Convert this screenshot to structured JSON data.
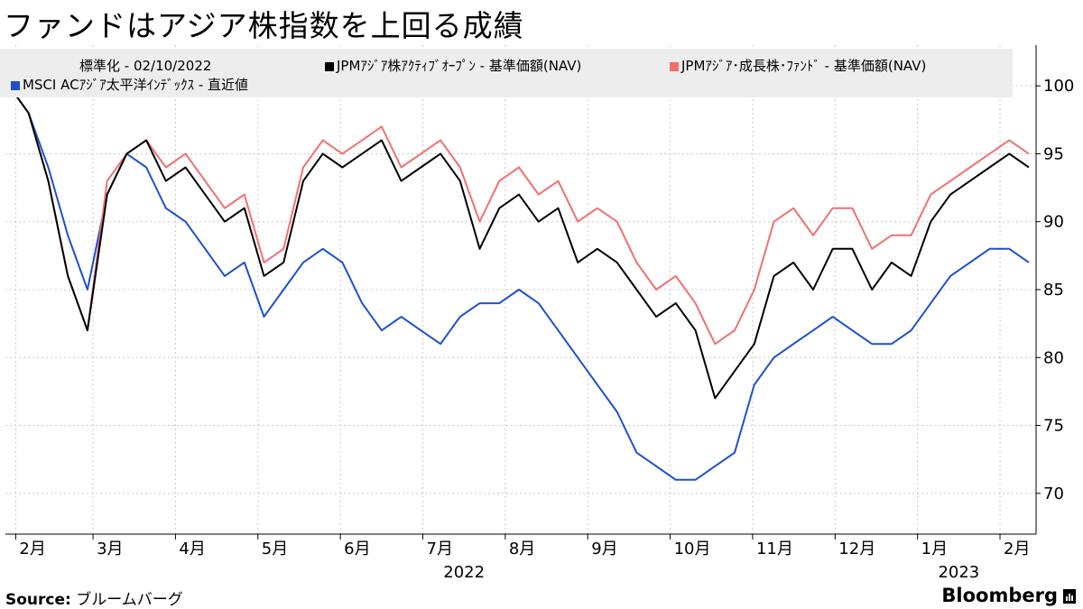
{
  "title": "ファンドはアジア株指数を上回る成績",
  "chart_data": {
    "type": "line",
    "normalization_note": "標準化 - 02/10/2022",
    "x": [
      "2022-02-10",
      "2022-02-17",
      "2022-02-24",
      "2022-03-03",
      "2022-03-10",
      "2022-03-17",
      "2022-03-24",
      "2022-03-31",
      "2022-04-07",
      "2022-04-14",
      "2022-04-21",
      "2022-04-28",
      "2022-05-05",
      "2022-05-12",
      "2022-05-19",
      "2022-05-26",
      "2022-06-02",
      "2022-06-09",
      "2022-06-16",
      "2022-06-23",
      "2022-06-30",
      "2022-07-07",
      "2022-07-14",
      "2022-07-21",
      "2022-07-28",
      "2022-08-04",
      "2022-08-11",
      "2022-08-18",
      "2022-08-25",
      "2022-09-01",
      "2022-09-08",
      "2022-09-15",
      "2022-09-22",
      "2022-09-29",
      "2022-10-06",
      "2022-10-13",
      "2022-10-20",
      "2022-10-27",
      "2022-11-03",
      "2022-11-10",
      "2022-11-17",
      "2022-11-24",
      "2022-12-01",
      "2022-12-08",
      "2022-12-15",
      "2022-12-22",
      "2022-12-29",
      "2023-01-05",
      "2023-01-12",
      "2023-01-19",
      "2023-01-26",
      "2023-02-02",
      "2023-02-09"
    ],
    "series": [
      {
        "name": "JPMｱｼﾞｱ株ｱｸﾃｨﾌﾞｵｰﾌﾟﾝ - 基準価額(NAV)",
        "color": "#000000",
        "values": [
          100,
          98,
          93,
          86,
          82,
          92,
          95,
          96,
          93,
          94,
          92,
          90,
          91,
          86,
          87,
          93,
          95,
          94,
          95,
          96,
          93,
          94,
          95,
          93,
          88,
          91,
          92,
          90,
          91,
          87,
          88,
          87,
          85,
          83,
          84,
          82,
          77,
          79,
          81,
          86,
          87,
          85,
          88,
          88,
          85,
          87,
          86,
          90,
          92,
          93,
          94,
          95,
          94
        ]
      },
      {
        "name": "JPMｱｼﾞｱ･成長株･ﾌｧﾝﾄﾞ - 基準価額(NAV)",
        "color": "#f07070",
        "values": [
          100,
          98,
          93,
          86,
          82,
          93,
          95,
          96,
          94,
          95,
          93,
          91,
          92,
          87,
          88,
          94,
          96,
          95,
          96,
          97,
          94,
          95,
          96,
          94,
          90,
          93,
          94,
          92,
          93,
          90,
          91,
          90,
          87,
          85,
          86,
          84,
          81,
          82,
          85,
          90,
          91,
          89,
          91,
          91,
          88,
          89,
          89,
          92,
          93,
          94,
          95,
          96,
          95
        ]
      },
      {
        "name": "MSCI ACｱｼﾞｱ太平洋ｲﾝﾃﾞｯｸｽ - 直近値",
        "color": "#1f4fd0",
        "values": [
          100,
          98,
          94,
          89,
          85,
          92,
          95,
          94,
          91,
          90,
          88,
          86,
          87,
          83,
          85,
          87,
          88,
          87,
          84,
          82,
          83,
          82,
          81,
          83,
          84,
          84,
          85,
          84,
          82,
          80,
          78,
          76,
          73,
          72,
          71,
          71,
          72,
          73,
          78,
          80,
          81,
          82,
          83,
          82,
          81,
          81,
          82,
          84,
          86,
          87,
          88,
          88,
          87
        ]
      }
    ],
    "y_ticks": [
      70,
      75,
      80,
      85,
      90,
      95,
      100
    ],
    "ylim": [
      67,
      103
    ],
    "x_tick_labels": [
      "2月",
      "3月",
      "4月",
      "5月",
      "6月",
      "7月",
      "8月",
      "9月",
      "10月",
      "11月",
      "12月",
      "1月",
      "2月"
    ],
    "year_labels": [
      "2022",
      "2023"
    ]
  },
  "legend": {
    "normalization": "標準化 - 02/10/2022",
    "items": [
      {
        "label": "JPMｱｼﾞｱ株ｱｸﾃｨﾌﾞｵｰﾌﾟﾝ - 基準価額(NAV)",
        "color": "#000000"
      },
      {
        "label": "JPMｱｼﾞｱ･成長株･ﾌｧﾝﾄﾞ - 基準価額(NAV)",
        "color": "#f07070"
      },
      {
        "label": "MSCI ACｱｼﾞｱ太平洋ｲﾝﾃﾞｯｸｽ - 直近値",
        "color": "#1f4fd0"
      }
    ]
  },
  "footer": {
    "source_label": "Source:",
    "source_value": "ブルームバーグ",
    "brand": "Bloomberg"
  }
}
